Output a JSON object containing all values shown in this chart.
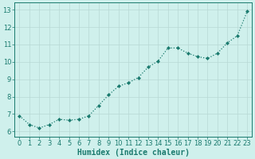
{
  "x": [
    0,
    1,
    2,
    3,
    4,
    5,
    6,
    7,
    8,
    9,
    10,
    11,
    12,
    13,
    14,
    15,
    16,
    17,
    18,
    19,
    20,
    21,
    22,
    23
  ],
  "y": [
    6.9,
    6.4,
    6.2,
    6.4,
    6.7,
    6.65,
    6.7,
    6.9,
    7.5,
    8.1,
    8.6,
    8.8,
    9.1,
    9.7,
    10.05,
    10.8,
    10.8,
    10.5,
    10.3,
    10.2,
    10.5,
    11.1,
    11.5,
    12.9
  ],
  "line_color": "#1a7a6e",
  "marker": "D",
  "marker_size": 2.0,
  "linewidth": 0.9,
  "bg_color": "#cff0ec",
  "grid_color": "#b8d8d4",
  "xlabel": "Humidex (Indice chaleur)",
  "xlabel_fontsize": 7,
  "tick_fontsize": 6,
  "ylim": [
    5.7,
    13.4
  ],
  "xlim": [
    -0.5,
    23.5
  ],
  "yticks": [
    6,
    7,
    8,
    9,
    10,
    11,
    12,
    13
  ],
  "xticks": [
    0,
    1,
    2,
    3,
    4,
    5,
    6,
    7,
    8,
    9,
    10,
    11,
    12,
    13,
    14,
    15,
    16,
    17,
    18,
    19,
    20,
    21,
    22,
    23
  ]
}
